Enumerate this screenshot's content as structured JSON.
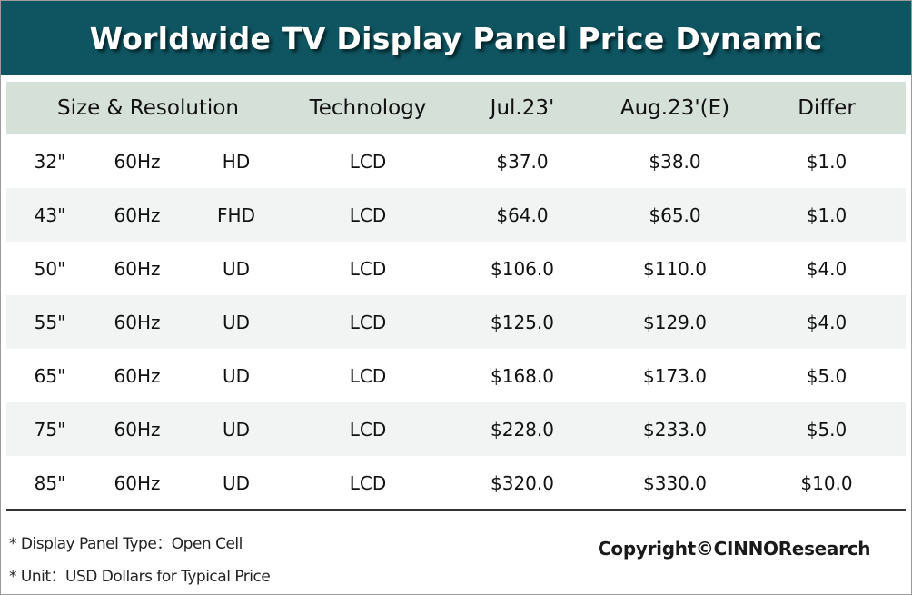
{
  "title": "Worldwide TV Display Panel Price Dynamic",
  "colors": {
    "title_bar": "#0f5561",
    "header_row": "#d5e0d8",
    "alt_row": "#f1f4f2"
  },
  "chart_data": {
    "type": "table",
    "title": "Worldwide TV Display Panel Price Dynamic",
    "headers": [
      "Size & Resolution",
      "Technology",
      "Jul.23'",
      "Aug.23'(E)",
      "Differ"
    ],
    "rows": [
      {
        "size": "32\"",
        "rate": "60Hz",
        "res": "HD",
        "tech": "LCD",
        "jul": "$37.0",
        "aug": "$38.0",
        "differ": "$1.0"
      },
      {
        "size": "43\"",
        "rate": "60Hz",
        "res": "FHD",
        "tech": "LCD",
        "jul": "$64.0",
        "aug": "$65.0",
        "differ": "$1.0"
      },
      {
        "size": "50\"",
        "rate": "60Hz",
        "res": "UD",
        "tech": "LCD",
        "jul": "$106.0",
        "aug": "$110.0",
        "differ": "$4.0"
      },
      {
        "size": "55\"",
        "rate": "60Hz",
        "res": "UD",
        "tech": "LCD",
        "jul": "$125.0",
        "aug": "$129.0",
        "differ": "$4.0"
      },
      {
        "size": "65\"",
        "rate": "60Hz",
        "res": "UD",
        "tech": "LCD",
        "jul": "$168.0",
        "aug": "$173.0",
        "differ": "$5.0"
      },
      {
        "size": "75\"",
        "rate": "60Hz",
        "res": "UD",
        "tech": "LCD",
        "jul": "$228.0",
        "aug": "$233.0",
        "differ": "$5.0"
      },
      {
        "size": "85\"",
        "rate": "60Hz",
        "res": "UD",
        "tech": "LCD",
        "jul": "$320.0",
        "aug": "$330.0",
        "differ": "$10.0"
      }
    ]
  },
  "notes": [
    "* Display Panel Type：Open Cell",
    "* Unit：USD Dollars for Typical Price"
  ],
  "copyright": "Copyright©CINNOResearch"
}
